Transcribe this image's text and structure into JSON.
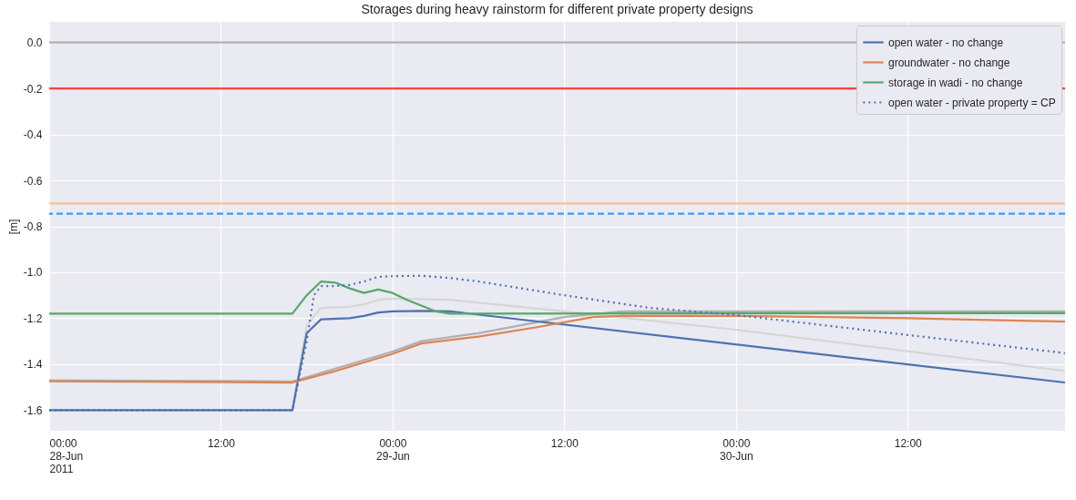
{
  "chart_data": {
    "type": "line",
    "title": "Storages during heavy rainstorm for different private property designs",
    "ylabel": "[m]",
    "xlim": [
      "2011-06-28T00:00",
      "2011-06-30T23:00"
    ],
    "xticks": [
      {
        "value": "2011-06-28T00:00",
        "label": "00:00\n28-Jun\n2011"
      },
      {
        "value": "2011-06-28T12:00",
        "label": "12:00"
      },
      {
        "value": "2011-06-29T00:00",
        "label": "00:00\n29-Jun"
      },
      {
        "value": "2011-06-29T12:00",
        "label": "12:00"
      },
      {
        "value": "2011-06-30T00:00",
        "label": "00:00\n30-Jun"
      },
      {
        "value": "2011-06-30T12:00",
        "label": "12:00"
      }
    ],
    "ylim": [
      -1.69,
      0.09
    ],
    "yticks": [
      {
        "value": 0,
        "label": "0.0"
      },
      {
        "value": -0.2,
        "label": "-0.2"
      },
      {
        "value": -0.4,
        "label": "-0.4"
      },
      {
        "value": -0.6,
        "label": "-0.6"
      },
      {
        "value": -0.8,
        "label": "-0.8"
      },
      {
        "value": -1,
        "label": "-1.0"
      },
      {
        "value": -1.2,
        "label": "-1.2"
      },
      {
        "value": -1.4,
        "label": "-1.4"
      },
      {
        "value": -1.6,
        "label": "-1.6"
      }
    ],
    "grid": true,
    "legend": "top right",
    "line_style": "solid",
    "marker": "none",
    "ref_lines": [
      {
        "axis": "y",
        "value": 0,
        "color": "#b0b0b0",
        "line_style": "solid"
      },
      {
        "axis": "y",
        "value": -0.2,
        "color": "#ff4040",
        "line_style": "solid"
      },
      {
        "axis": "y",
        "value": -0.7,
        "color": "#f2c38f",
        "line_style": "solid"
      },
      {
        "axis": "y",
        "value": -0.745,
        "color": "#3c9cff",
        "line_style": "dashed"
      }
    ],
    "series": [
      {
        "color": "#d6d6d6",
        "x": [
          "2011-06-28T00:00",
          "2011-06-28T17:00",
          "2011-06-28T18:00",
          "2011-06-28T19:00",
          "2011-06-28T21:00",
          "2011-06-28T22:00",
          "2011-06-28T23:00",
          "2011-06-29T00:00",
          "2011-06-29T04:00",
          "2011-06-29T12:00",
          "2011-06-30T00:00",
          "2011-06-30T23:00"
        ],
        "values": [
          -1.6,
          -1.6,
          -1.23,
          -1.155,
          -1.15,
          -1.14,
          -1.12,
          -1.115,
          -1.12,
          -1.17,
          -1.25,
          -1.43
        ]
      },
      {
        "color": "#b0b0b0",
        "x": [
          "2011-06-28T00:00",
          "2011-06-28T17:00",
          "2011-06-29T00:00",
          "2011-06-29T02:00",
          "2011-06-29T06:00",
          "2011-06-29T12:00",
          "2011-06-29T16:00",
          "2011-06-30T23:00"
        ],
        "values": [
          -1.47,
          -1.475,
          -1.345,
          -1.3,
          -1.265,
          -1.195,
          -1.17,
          -1.17
        ]
      },
      {
        "name": "open water - no change",
        "color": "#4c72b0",
        "line_style": "solid",
        "x": [
          "2011-06-28T00:00",
          "2011-06-28T17:00",
          "2011-06-28T18:00",
          "2011-06-28T19:00",
          "2011-06-28T21:00",
          "2011-06-28T22:00",
          "2011-06-28T23:00",
          "2011-06-29T00:00",
          "2011-06-29T02:00",
          "2011-06-29T04:00",
          "2011-06-30T23:00"
        ],
        "values": [
          -1.6,
          -1.6,
          -1.265,
          -1.205,
          -1.2,
          -1.19,
          -1.175,
          -1.17,
          -1.168,
          -1.17,
          -1.48
        ]
      },
      {
        "name": "groundwater - no change",
        "color": "#dd8452",
        "line_style": "solid",
        "x": [
          "2011-06-28T00:00",
          "2011-06-28T17:00",
          "2011-06-28T20:00",
          "2011-06-29T00:00",
          "2011-06-29T02:00",
          "2011-06-29T06:00",
          "2011-06-29T10:00",
          "2011-06-29T14:00",
          "2011-06-29T16:00",
          "2011-06-30T00:00",
          "2011-06-30T12:00",
          "2011-06-30T23:00"
        ],
        "values": [
          -1.475,
          -1.48,
          -1.43,
          -1.355,
          -1.31,
          -1.28,
          -1.24,
          -1.195,
          -1.19,
          -1.19,
          -1.2,
          -1.215
        ]
      },
      {
        "name": "storage in wadi - no change",
        "color": "#55a868",
        "line_style": "solid",
        "x": [
          "2011-06-28T00:00",
          "2011-06-28T17:00",
          "2011-06-28T18:00",
          "2011-06-28T19:00",
          "2011-06-28T20:00",
          "2011-06-28T21:00",
          "2011-06-28T22:00",
          "2011-06-28T23:00",
          "2011-06-29T00:00",
          "2011-06-29T01:00",
          "2011-06-29T02:00",
          "2011-06-29T03:00",
          "2011-06-29T04:00",
          "2011-06-30T23:00"
        ],
        "values": [
          -1.18,
          -1.18,
          -1.1,
          -1.04,
          -1.045,
          -1.07,
          -1.09,
          -1.075,
          -1.09,
          -1.12,
          -1.145,
          -1.17,
          -1.18,
          -1.178
        ]
      },
      {
        "name": "open water - private property = CP",
        "color": "#4c72b0",
        "line_style": "dotted",
        "x": [
          "2011-06-28T00:00",
          "2011-06-28T17:00",
          "2011-06-28T18:00",
          "2011-06-28T18:30",
          "2011-06-28T19:00",
          "2011-06-28T20:00",
          "2011-06-28T21:00",
          "2011-06-28T22:00",
          "2011-06-28T23:00",
          "2011-06-29T00:00",
          "2011-06-29T02:00",
          "2011-06-29T04:00",
          "2011-06-29T06:00",
          "2011-06-29T12:00",
          "2011-06-29T18:00",
          "2011-06-30T00:00",
          "2011-06-30T12:00",
          "2011-06-30T23:00"
        ],
        "values": [
          -1.6,
          -1.6,
          -1.3,
          -1.1,
          -1.06,
          -1.06,
          -1.055,
          -1.04,
          -1.02,
          -1.017,
          -1.015,
          -1.025,
          -1.04,
          -1.1,
          -1.155,
          -1.186,
          -1.273,
          -1.352
        ]
      }
    ]
  }
}
